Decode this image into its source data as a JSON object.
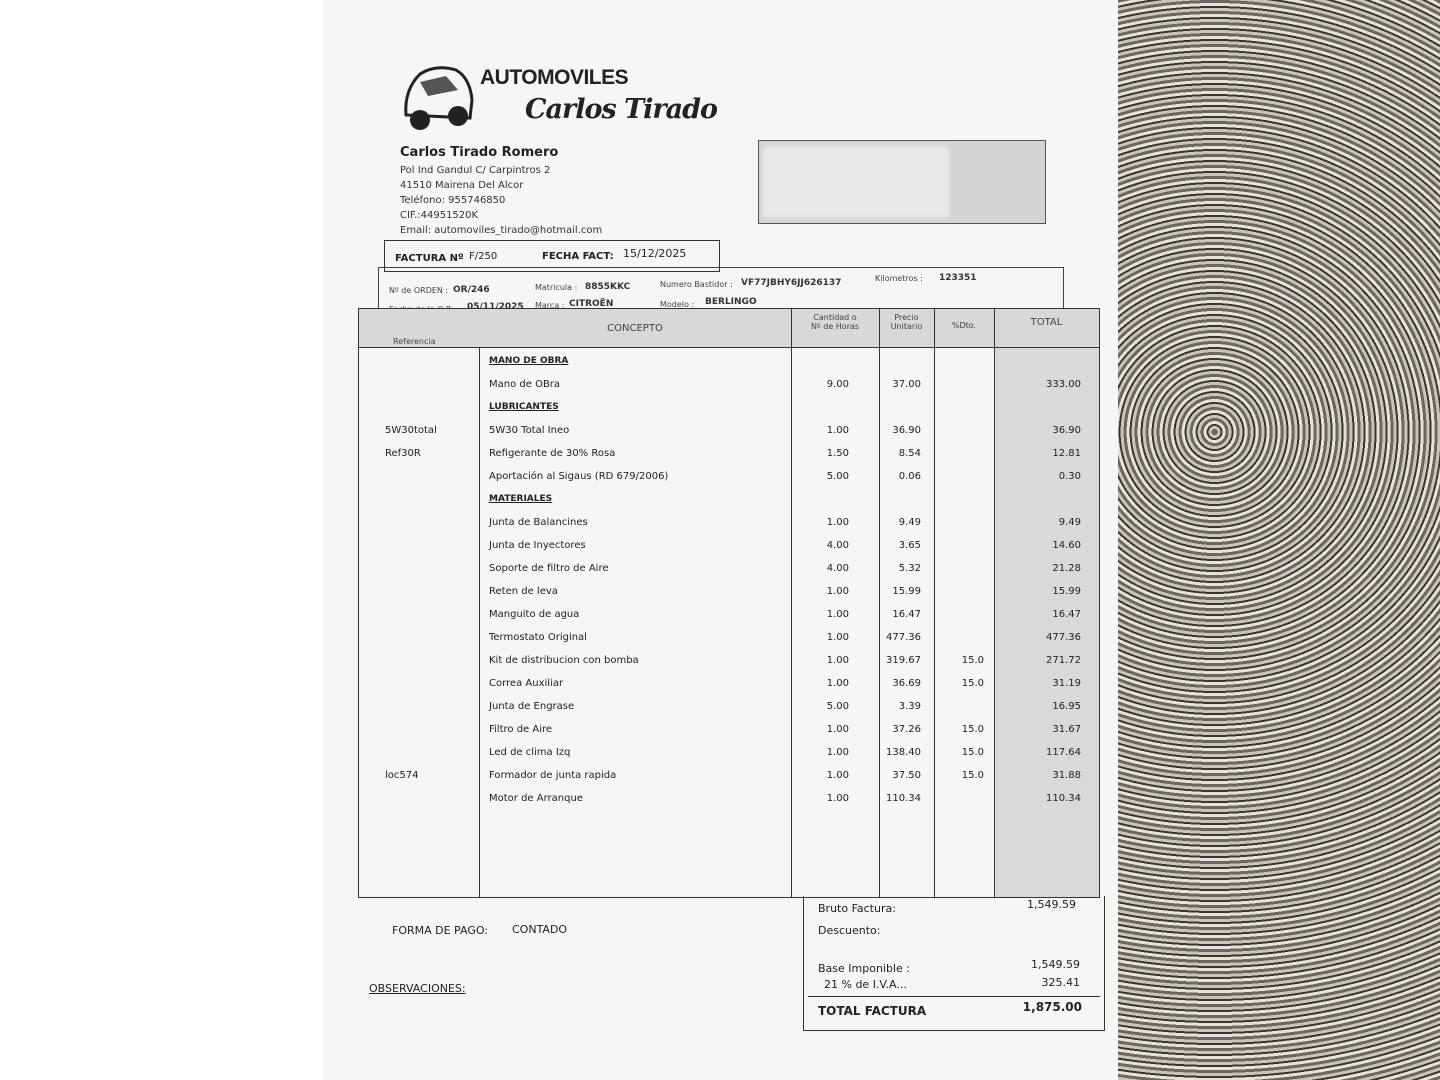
{
  "brand": {
    "title": "AUTOMOVILES",
    "script": "Carlos Tirado"
  },
  "company": {
    "name": "Carlos Tirado Romero",
    "address": "Pol Ind Gandul C/ Carpintros 2",
    "city": "41510  Mairena Del Alcor",
    "phone": "Teléfono:   955746850",
    "cif": "CIF.:44951520K",
    "email": "Email: automoviles_tirado@hotmail.com"
  },
  "invoice": {
    "number_label": "FACTURA Nº",
    "number": "F/250",
    "date_label": "FECHA FACT:",
    "date": "15/12/2025"
  },
  "order": {
    "orden_label": "Nº de ORDEN :",
    "orden": "OR/246",
    "fecha_label": "Fecha de la O.R. :",
    "fecha": "05/11/2025",
    "matricula_label": "Matricula :",
    "matricula": "8855KKC",
    "marca_label": "Marca :",
    "marca": "CITROËN",
    "bastidor_label": "Numero Bastidor :",
    "bastidor": "VF77JBHY6JJ626137",
    "modelo_label": "Modelo :",
    "modelo": "BERLINGO",
    "km_label": "Kilometros :",
    "km": "123351"
  },
  "columns": {
    "ref": "Referencia",
    "concepto": "CONCEPTO",
    "cant1": "Cantidad o",
    "cant2": "Nº de Horas",
    "precio1": "Precio",
    "precio2": "Unitario",
    "dto": "%Dto.",
    "total": "TOTAL"
  },
  "rows": [
    {
      "section": "MANO DE OBRA"
    },
    {
      "ref": "",
      "concepto": "Mano de OBra",
      "cant": "9.00",
      "precio": "37.00",
      "dto": "",
      "total": "333.00"
    },
    {
      "section": "LUBRICANTES"
    },
    {
      "ref": "5W30total",
      "concepto": "5W30 Total Ineo",
      "cant": "1.00",
      "precio": "36.90",
      "dto": "",
      "total": "36.90"
    },
    {
      "ref": "Ref30R",
      "concepto": "Refigerante de 30% Rosa",
      "cant": "1.50",
      "precio": "8.54",
      "dto": "",
      "total": "12.81"
    },
    {
      "ref": "",
      "concepto": "Aportación al Sigaus (RD 679/2006)",
      "cant": "5.00",
      "precio": "0.06",
      "dto": "",
      "total": "0.30"
    },
    {
      "section": "MATERIALES"
    },
    {
      "ref": "",
      "concepto": "Junta de Balancines",
      "cant": "1.00",
      "precio": "9.49",
      "dto": "",
      "total": "9.49"
    },
    {
      "ref": "",
      "concepto": "Junta de Inyectores",
      "cant": "4.00",
      "precio": "3.65",
      "dto": "",
      "total": "14.60"
    },
    {
      "ref": "",
      "concepto": "Soporte de filtro de Aire",
      "cant": "4.00",
      "precio": "5.32",
      "dto": "",
      "total": "21.28"
    },
    {
      "ref": "",
      "concepto": "Reten de leva",
      "cant": "1.00",
      "precio": "15.99",
      "dto": "",
      "total": "15.99"
    },
    {
      "ref": "",
      "concepto": "Manguito de agua",
      "cant": "1.00",
      "precio": "16.47",
      "dto": "",
      "total": "16.47"
    },
    {
      "ref": "",
      "concepto": "Termostato Original",
      "cant": "1.00",
      "precio": "477.36",
      "dto": "",
      "total": "477.36"
    },
    {
      "ref": "",
      "concepto": "Kit de distribucion con bomba",
      "cant": "1.00",
      "precio": "319.67",
      "dto": "15.0",
      "total": "271.72"
    },
    {
      "ref": "",
      "concepto": "Correa Auxiliar",
      "cant": "1.00",
      "precio": "36.69",
      "dto": "15.0",
      "total": "31.19"
    },
    {
      "ref": "",
      "concepto": "Junta de Engrase",
      "cant": "5.00",
      "precio": "3.39",
      "dto": "",
      "total": "16.95"
    },
    {
      "ref": "",
      "concepto": "Filtro de Aire",
      "cant": "1.00",
      "precio": "37.26",
      "dto": "15.0",
      "total": "31.67"
    },
    {
      "ref": "",
      "concepto": "Led  de clima Izq",
      "cant": "1.00",
      "precio": "138.40",
      "dto": "15.0",
      "total": "117.64"
    },
    {
      "ref": "loc574",
      "concepto": "Formador de junta rapida",
      "cant": "1.00",
      "precio": "37.50",
      "dto": "15.0",
      "total": "31.88"
    },
    {
      "ref": "",
      "concepto": "Motor de Arranque",
      "cant": "1.00",
      "precio": "110.34",
      "dto": "",
      "total": "110.34"
    }
  ],
  "payment": {
    "label": "FORMA DE PAGO:",
    "value": "CONTADO",
    "obs_label": "OBSERVACIONES:"
  },
  "totals": {
    "bruto_label": "Bruto Factura:",
    "bruto": "1,549.59",
    "descuento_label": "Descuento:",
    "base_label": "Base Imponible :",
    "base": "1,549.59",
    "iva_label": "21 % de I.V.A...",
    "iva": "325.41",
    "total_label": "TOTAL FACTURA",
    "total": "1,875.00"
  }
}
